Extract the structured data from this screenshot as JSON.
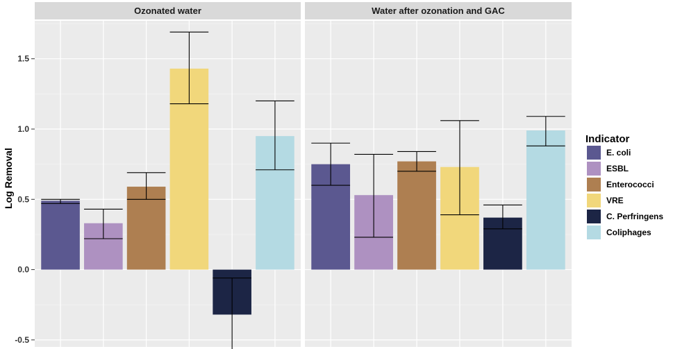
{
  "chart_data": {
    "type": "bar",
    "ylabel": "Log Removal",
    "xlabel": "",
    "ylim": [
      -0.55,
      1.77
    ],
    "yticks": [
      -0.5,
      0.0,
      0.5,
      1.0,
      1.5
    ],
    "ytick_labels": [
      "-0.5",
      "0.0",
      "0.5",
      "1.0",
      "1.5"
    ],
    "legend_title": "Indicator",
    "legend_position": "right",
    "categories": [
      "E. coli",
      "ESBL",
      "Enterococci",
      "VRE",
      "C. Perfringens",
      "Coliphages"
    ],
    "colors": [
      "#5b5890",
      "#ae91c1",
      "#ae7f51",
      "#f1d77b",
      "#1c2545",
      "#b4dae3"
    ],
    "panels": [
      {
        "title": "Ozonated water",
        "values": [
          0.49,
          0.33,
          0.59,
          1.43,
          -0.32,
          0.95
        ],
        "err_low": [
          0.47,
          0.22,
          0.5,
          1.18,
          -0.57,
          0.71
        ],
        "err_high": [
          0.5,
          0.43,
          0.69,
          1.69,
          -0.06,
          1.2
        ]
      },
      {
        "title": "Water after ozonation and GAC",
        "values": [
          0.75,
          0.53,
          0.77,
          0.73,
          0.37,
          0.99
        ],
        "err_low": [
          0.6,
          0.23,
          0.7,
          0.39,
          0.29,
          0.88
        ],
        "err_high": [
          0.9,
          0.82,
          0.84,
          1.06,
          0.46,
          1.09
        ]
      }
    ]
  }
}
